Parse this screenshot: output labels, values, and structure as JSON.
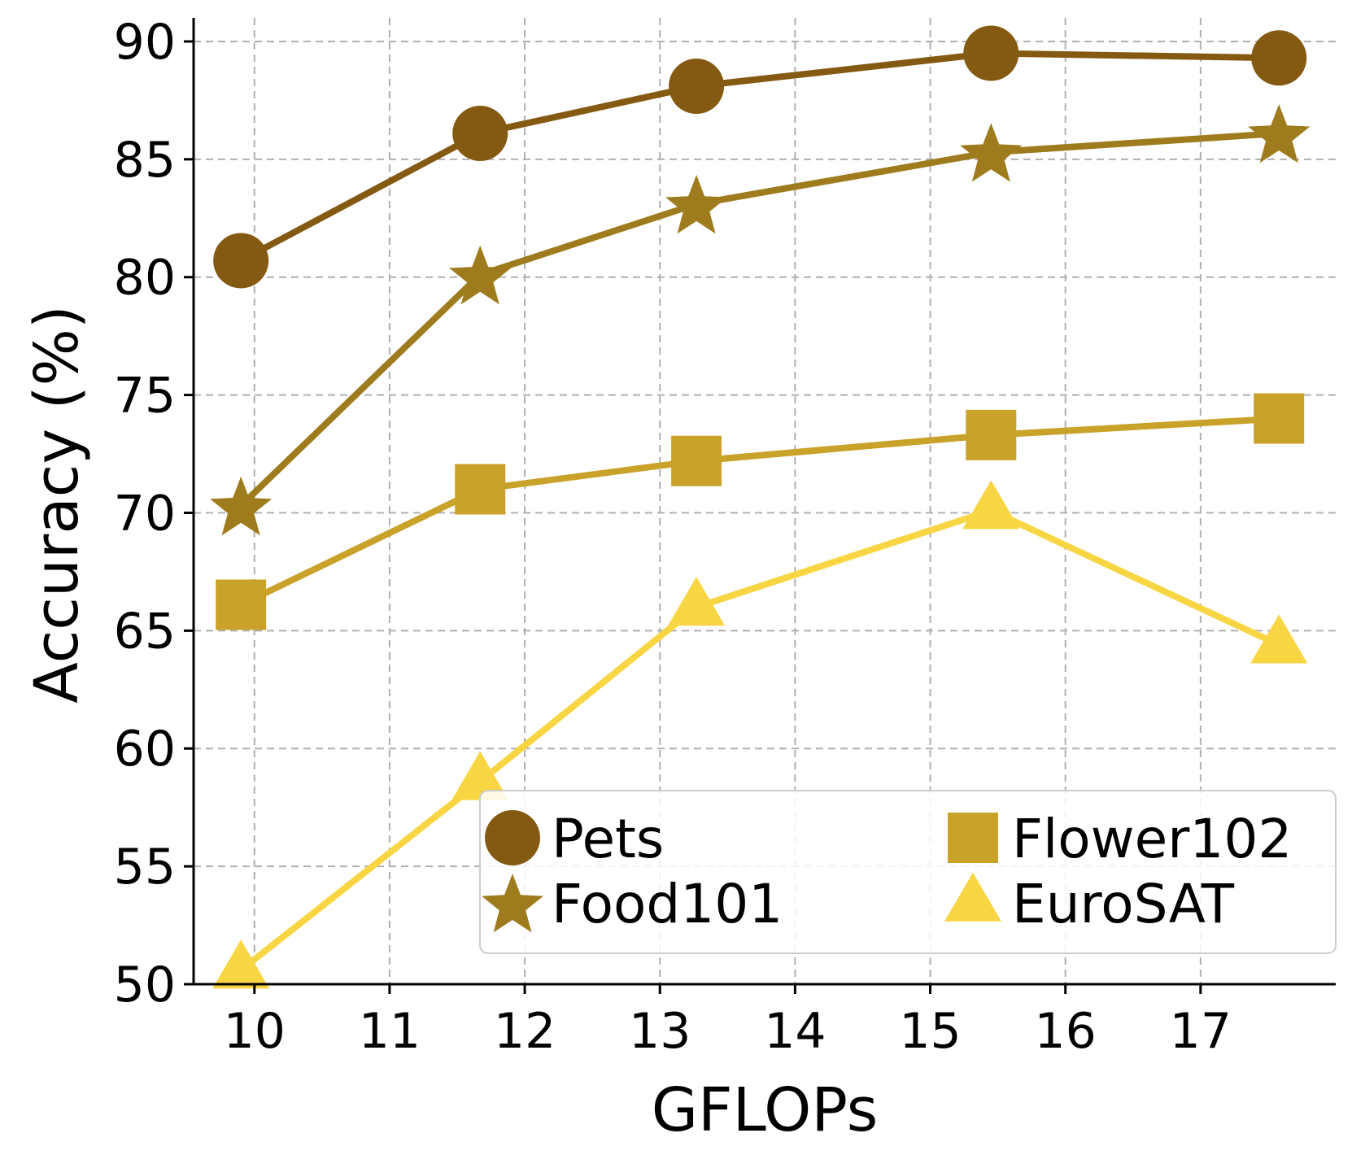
{
  "chart_data": {
    "type": "line",
    "title": "",
    "xlabel": "GFLOPs",
    "ylabel": "Accuracy (%)",
    "xlim": [
      9.55,
      18.0
    ],
    "ylim": [
      50,
      91
    ],
    "xticks": [
      10,
      11,
      12,
      13,
      14,
      15,
      16,
      17
    ],
    "yticks": [
      50,
      55,
      60,
      65,
      70,
      75,
      80,
      85,
      90
    ],
    "grid": true,
    "legend_position": "lower-right",
    "legend_columns": 2,
    "series": [
      {
        "name": "Pets",
        "marker": "circle",
        "color": "#845a12",
        "x": [
          9.9,
          11.67,
          13.27,
          15.45,
          17.58
        ],
        "y": [
          80.7,
          86.1,
          88.1,
          89.5,
          89.3
        ]
      },
      {
        "name": "Food101",
        "marker": "star",
        "color": "#9e7b1d",
        "x": [
          9.9,
          11.67,
          13.27,
          15.45,
          17.58
        ],
        "y": [
          70.3,
          80.1,
          83.1,
          85.3,
          86.1
        ]
      },
      {
        "name": "Flower102",
        "marker": "square",
        "color": "#c9a22a",
        "x": [
          9.9,
          11.67,
          13.27,
          15.45,
          17.58
        ],
        "y": [
          66.1,
          71.0,
          72.2,
          73.3,
          74.0
        ]
      },
      {
        "name": "EuroSAT",
        "marker": "triangle",
        "color": "#f8d542",
        "x": [
          9.9,
          11.67,
          13.27,
          15.45,
          17.58
        ],
        "y": [
          50.6,
          58.6,
          66.0,
          70.1,
          64.4
        ]
      }
    ]
  }
}
